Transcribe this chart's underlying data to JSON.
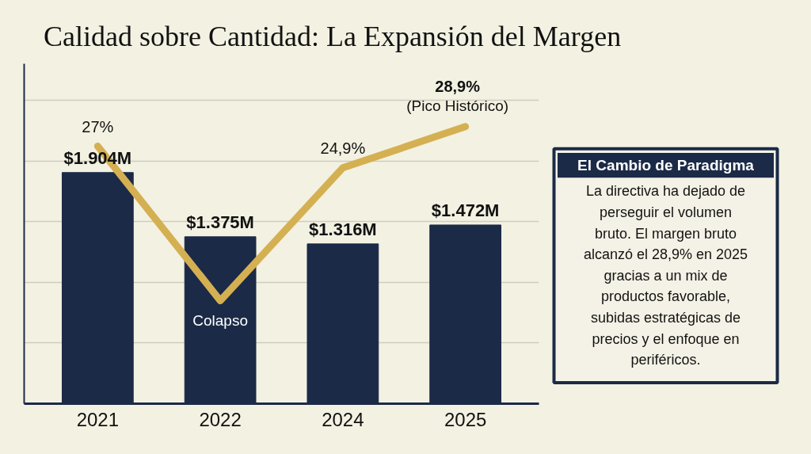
{
  "chart_data": {
    "type": "bar",
    "title": "Calidad sobre Cantidad: La Expansión del Margen",
    "categories": [
      "2021",
      "2022",
      "2024",
      "2025"
    ],
    "series": [
      {
        "color": "#1b2a47",
        "values": [
          1904,
          1375,
          1316,
          1472
        ],
        "value_labels": [
          "$1.904M",
          "$1.375M",
          "$1.316M",
          "$1.472M"
        ]
      },
      {
        "type": "line",
        "axis": "y2",
        "color": "#d4b052",
        "values": [
          27,
          12,
          24.9,
          28.9
        ],
        "value_labels": [
          "27%",
          null,
          "24,9%",
          "28,9%"
        ]
      }
    ],
    "ylim": [
      0,
      2800
    ],
    "yticks": [
      {
        "value": 500,
        "label": null
      },
      {
        "value": 1000,
        "label": null
      },
      {
        "value": 1500,
        "label": null
      },
      {
        "value": 2000,
        "label": null
      },
      {
        "value": 2500,
        "label": null
      }
    ],
    "y2lim": [
      2,
      35
    ],
    "tick_labels": "x",
    "grid": "y",
    "marker": "none",
    "line_style": "solid",
    "annotations": [
      "El Cambio de Paradigma",
      "La directiva ha dejado de perseguir el volumen bruto. El margen bruto alcanzó el 28,9% en 2025 gracias a un mix de productos favorable, subidas estratégicas de precios y el enfoque en periféricos.",
      "Colapso",
      "(Pico Histórico)"
    ]
  }
}
